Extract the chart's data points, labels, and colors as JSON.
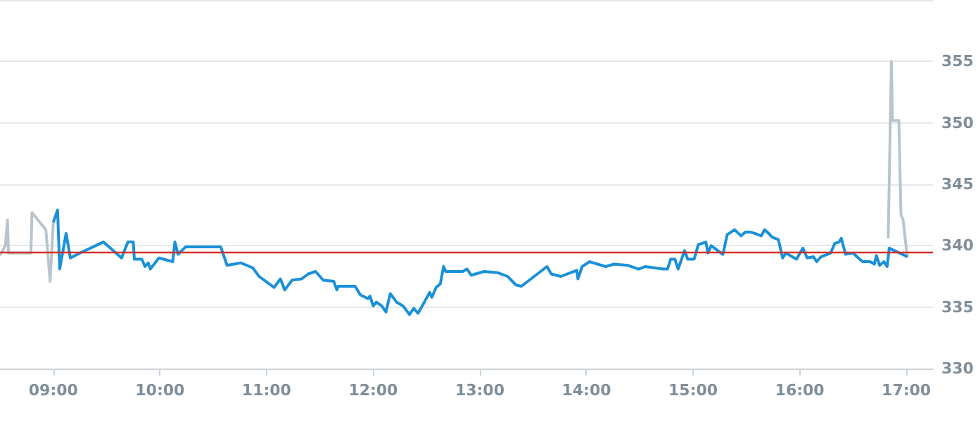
{
  "chart_data": {
    "type": "line",
    "xlim": [
      8.5,
      17.25
    ],
    "ylim": [
      330,
      360
    ],
    "xticks": [
      {
        "value": 9,
        "label": "09:00"
      },
      {
        "value": 10,
        "label": "10:00"
      },
      {
        "value": 11,
        "label": "11:00"
      },
      {
        "value": 12,
        "label": "12:00"
      },
      {
        "value": 13,
        "label": "13:00"
      },
      {
        "value": 14,
        "label": "14:00"
      },
      {
        "value": 15,
        "label": "15:00"
      },
      {
        "value": 16,
        "label": "16:00"
      },
      {
        "value": 17,
        "label": "17:00"
      }
    ],
    "yticks": [
      330,
      335,
      340,
      345,
      350,
      355
    ],
    "grid": "y",
    "marker": "none",
    "line_style": "solid",
    "ref_lines": [
      {
        "axis": "y",
        "value": 339.5,
        "color": "#d32f2f"
      }
    ],
    "series": [
      {
        "color": "#b9c5cd",
        "x": [
          8.5,
          8.55,
          8.57,
          8.58,
          8.79,
          8.8,
          8.93,
          8.97,
          9.0,
          12.0,
          16.83,
          16.86,
          16.87,
          16.93,
          16.95,
          16.97,
          17.01
        ],
        "values": [
          339.2,
          340.0,
          342.1,
          339.4,
          339.4,
          342.7,
          341.3,
          337.1,
          341.9,
          null,
          340.6,
          355.0,
          350.2,
          350.2,
          342.5,
          342.1,
          339.0
        ]
      },
      {
        "color": "#1a90d8",
        "x": [
          9.0,
          9.04,
          9.06,
          9.12,
          9.16,
          9.25,
          9.42,
          9.47,
          9.64,
          9.7,
          9.75,
          9.76,
          9.83,
          9.86,
          9.89,
          9.91,
          9.99,
          10.12,
          10.14,
          10.17,
          10.24,
          10.57,
          10.63,
          10.76,
          10.87,
          10.93,
          11.07,
          11.13,
          11.17,
          11.24,
          11.33,
          11.39,
          11.46,
          11.53,
          11.63,
          11.66,
          11.67,
          11.83,
          11.88,
          11.95,
          11.97,
          12.0,
          12.03,
          12.08,
          12.12,
          12.16,
          12.22,
          12.28,
          12.34,
          12.38,
          12.42,
          12.46,
          12.53,
          12.55,
          12.59,
          12.63,
          12.66,
          12.68,
          12.84,
          12.88,
          12.92,
          13.04,
          13.17,
          13.26,
          13.34,
          13.39,
          13.54,
          13.63,
          13.67,
          13.76,
          13.91,
          13.92,
          13.96,
          14.03,
          14.18,
          14.26,
          14.39,
          14.49,
          14.55,
          14.72,
          14.76,
          14.79,
          14.83,
          14.86,
          14.92,
          14.95,
          15.01,
          15.05,
          15.12,
          15.14,
          15.17,
          15.28,
          15.32,
          15.39,
          15.45,
          15.49,
          15.54,
          15.58,
          15.64,
          15.67,
          15.71,
          15.74,
          15.8,
          15.84,
          15.87,
          15.97,
          16.03,
          16.07,
          16.13,
          16.16,
          16.2,
          16.29,
          16.33,
          16.37,
          16.39,
          16.43,
          16.5,
          16.55,
          16.59,
          16.66,
          16.7,
          16.72,
          16.75,
          16.79,
          16.82,
          16.84,
          17.01
        ],
        "values": [
          341.9,
          342.9,
          338.1,
          341.0,
          339.0,
          339.4,
          340.1,
          340.3,
          339.0,
          340.3,
          340.3,
          338.9,
          338.9,
          338.3,
          338.6,
          338.1,
          339.0,
          338.7,
          340.3,
          339.3,
          339.9,
          339.9,
          338.4,
          338.6,
          338.2,
          337.5,
          336.6,
          337.3,
          336.4,
          337.2,
          337.3,
          337.7,
          337.9,
          337.2,
          337.1,
          336.4,
          336.7,
          336.7,
          336.0,
          335.7,
          335.9,
          335.1,
          335.4,
          335.1,
          334.6,
          336.1,
          335.4,
          335.1,
          334.4,
          334.9,
          334.5,
          335.1,
          336.2,
          335.8,
          336.6,
          336.9,
          338.3,
          337.9,
          337.9,
          338.1,
          337.6,
          337.9,
          337.8,
          337.5,
          336.8,
          336.7,
          337.7,
          338.3,
          337.7,
          337.5,
          338.0,
          337.3,
          338.3,
          338.7,
          338.3,
          338.5,
          338.4,
          338.1,
          338.3,
          338.1,
          338.1,
          338.9,
          338.9,
          338.1,
          339.6,
          338.9,
          338.9,
          340.1,
          340.3,
          339.4,
          340.0,
          339.3,
          340.9,
          341.3,
          340.8,
          341.1,
          341.1,
          341.0,
          340.8,
          341.3,
          341.0,
          340.7,
          340.5,
          339.0,
          339.4,
          338.9,
          339.8,
          339.0,
          339.1,
          338.7,
          339.1,
          339.4,
          340.2,
          340.3,
          340.6,
          339.3,
          339.4,
          339.0,
          338.7,
          338.7,
          338.5,
          339.2,
          338.4,
          338.7,
          338.3,
          339.8,
          339.1
        ]
      }
    ]
  }
}
